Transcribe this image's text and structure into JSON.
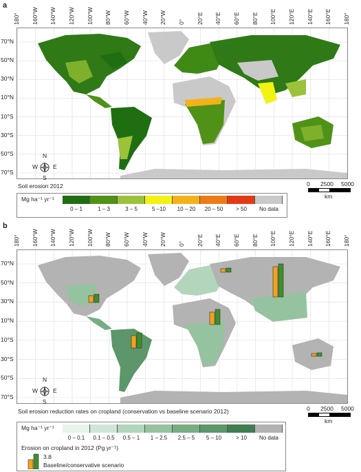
{
  "panel_a": {
    "letter": "a",
    "caption": "Soil erosion 2012",
    "unit_label": "Mg ha⁻¹ yr⁻¹",
    "legend": [
      {
        "label": "0 – 1",
        "color": "#1f6f12"
      },
      {
        "label": "1 – 3",
        "color": "#4f9217"
      },
      {
        "label": "3 – 5",
        "color": "#9bc23a"
      },
      {
        "label": "5 –10",
        "color": "#f2f213"
      },
      {
        "label": "10 – 20",
        "color": "#f4b21a"
      },
      {
        "label": "20 – 50",
        "color": "#ee7c16"
      },
      {
        "label": "> 50",
        "color": "#e23a16"
      },
      {
        "label": "No data",
        "color": "#c9c9c9"
      }
    ]
  },
  "panel_b": {
    "letter": "b",
    "caption": "Soil erosion reduction rates on cropland (conservation vs baseline scenario 2012)",
    "unit_label": "Mg ha⁻¹ yr⁻¹",
    "legend": [
      {
        "label": "0 – 0.1",
        "color": "#e6f4ec"
      },
      {
        "label": "0.1 – 0.5",
        "color": "#cfe6d6"
      },
      {
        "label": "0.5 – 1",
        "color": "#b2d5bb"
      },
      {
        "label": "1 – 2.5",
        "color": "#96c39f"
      },
      {
        "label": "2.5 – 5",
        "color": "#78ad84"
      },
      {
        "label": "5 – 10",
        "color": "#5c966a"
      },
      {
        "label": "> 10",
        "color": "#407d52"
      },
      {
        "label": "No data",
        "color": "#b3b3b3"
      }
    ],
    "bars_title": "Erosion on cropland in 2012 (Pg yr⁻¹)",
    "bars_value": "3.8",
    "bars_caption": "Baseline/conservative scenario",
    "bar_colors": {
      "baseline": "#f0a21c",
      "conservative": "#3d8f2a"
    }
  },
  "lon_ticks": [
    "180°",
    "160°W",
    "140°W",
    "120°W",
    "100°W",
    "80°W",
    "60°W",
    "40°W",
    "20°W",
    "0°",
    "20°E",
    "40°E",
    "60°E",
    "80°E",
    "100°E",
    "120°E",
    "140°E",
    "160°E",
    "180°"
  ],
  "lat_ticks": [
    "70°N",
    "50°N",
    "30°N",
    "10°N",
    "10°S",
    "30°S",
    "50°S",
    "70°S"
  ],
  "scale_bar": {
    "ticks": [
      "0",
      "2500",
      "5000"
    ],
    "unit": "km"
  },
  "compass": {
    "n": "N",
    "s": "S",
    "e": "E",
    "w": "W"
  }
}
